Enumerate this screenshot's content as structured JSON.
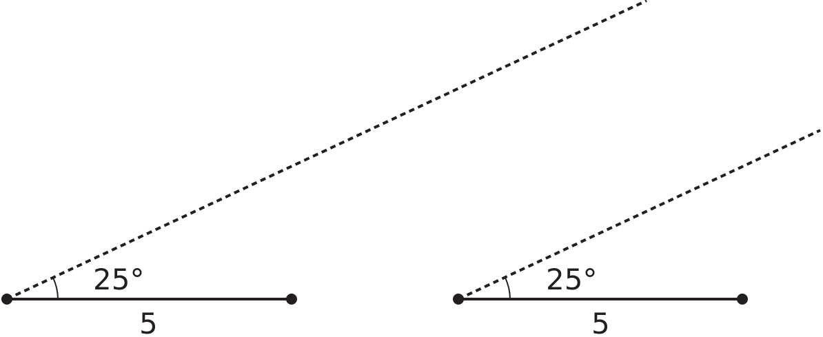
{
  "figures": [
    {
      "angle_label": "25°",
      "side_label": "5"
    },
    {
      "angle_label": "25°",
      "side_label": "5"
    }
  ],
  "colors": {
    "stroke": "#231f20"
  }
}
